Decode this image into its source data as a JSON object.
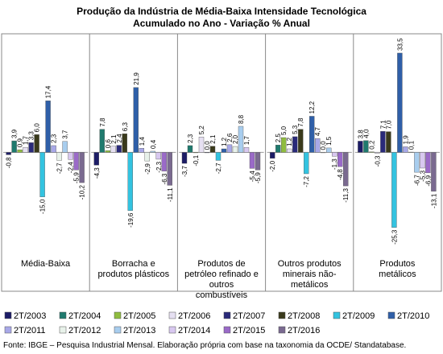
{
  "chart_data": {
    "type": "bar",
    "title": "Produção da Indústria de Média-Baixa Intensidade Tecnológica",
    "subtitle": "Acumulado no Ano - Variação % Anual",
    "categories": [
      "Média-Baixa",
      "Borracha e produtos plásticos",
      "Produtos de petróleo refinado e outros combustíveis",
      "Outros produtos minerais não-metálicos",
      "Produtos metálicos"
    ],
    "ylim": [
      -30,
      40
    ],
    "series": [
      {
        "name": "2T/2003",
        "color": "#1c1c66",
        "values": [
          -0.8,
          -4.3,
          -3.7,
          -2.0,
          3.8
        ],
        "value_labels": [
          "-0,8",
          "-4,3",
          "-3,7",
          "-2,0",
          "3,8"
        ]
      },
      {
        "name": "2T/2004",
        "color": "#1f7a6e",
        "values": [
          3.9,
          7.8,
          2.3,
          2.5,
          4.0
        ],
        "value_labels": [
          "3,9",
          "7,8",
          "2,3",
          "2,5",
          "4,0"
        ]
      },
      {
        "name": "2T/2005",
        "color": "#8fbc3f",
        "values": [
          0.9,
          0.6,
          -0.1,
          5.0,
          0.2
        ],
        "value_labels": [
          "0,9",
          "0,6",
          "-0,1",
          "5,0",
          "0,2"
        ]
      },
      {
        "name": "2T/2006",
        "color": "#e6e0f2",
        "values": [
          1.7,
          2.1,
          5.2,
          1.2,
          -0.3
        ],
        "value_labels": [
          "1,7",
          "2,1",
          "5,2",
          "1,2",
          "-0,3"
        ]
      },
      {
        "name": "2T/2007",
        "color": "#2a2a7a",
        "values": [
          3.3,
          2.4,
          0.0,
          5.3,
          7.1
        ],
        "value_labels": [
          "3,3",
          "2,4",
          "0,0",
          "5,3",
          "7,1"
        ]
      },
      {
        "name": "2T/2008",
        "color": "#3a3a1c",
        "values": [
          6.0,
          6.3,
          2.1,
          7.8,
          7.0
        ],
        "value_labels": [
          "6,0",
          "6,3",
          "2,1",
          "7,8",
          "7,0"
        ]
      },
      {
        "name": "2T/2009",
        "color": "#33c3e0",
        "values": [
          -15.0,
          -19.6,
          -2.7,
          -7.2,
          -25.3
        ],
        "value_labels": [
          "-15,0",
          "-19,6",
          "-2,7",
          "-7,2",
          "-25,3"
        ]
      },
      {
        "name": "2T/2010",
        "color": "#2f5fa8",
        "values": [
          17.4,
          21.9,
          1.2,
          12.2,
          33.5
        ],
        "value_labels": [
          "17,4",
          "21,9",
          "1,2",
          "12,2",
          "33,5"
        ]
      },
      {
        "name": "2T/2011",
        "color": "#a8a8e8",
        "values": [
          2.3,
          1.4,
          2.6,
          4.7,
          1.9
        ],
        "value_labels": [
          "2,3",
          "1,4",
          "2,6",
          "4,7",
          "1,9"
        ]
      },
      {
        "name": "2T/2012",
        "color": "#e8f2ea",
        "values": [
          -2.7,
          -2.9,
          2.0,
          0.0,
          0.1
        ],
        "value_labels": [
          "-2,7",
          "-2,9",
          "2,0",
          "0,0",
          "0,1"
        ]
      },
      {
        "name": "2T/2013",
        "color": "#a8cdee",
        "values": [
          3.7,
          0.4,
          8.8,
          1.5,
          -6.7
        ],
        "value_labels": [
          "3,7",
          "0,4",
          "8,8",
          "1,5",
          "-6,7"
        ]
      },
      {
        "name": "2T/2014",
        "color": "#d8c8f0",
        "values": [
          -2.4,
          -2.3,
          1.7,
          -1.3,
          -5.3
        ],
        "value_labels": [
          "-2,4",
          "-2,3",
          "1,7",
          "-1,3",
          "-5,3"
        ]
      },
      {
        "name": "2T/2015",
        "color": "#9a6ac8",
        "values": [
          -5.9,
          -6.3,
          -5.4,
          -4.8,
          -6.9
        ],
        "value_labels": [
          "-5,9",
          "-6,3",
          "-5,4",
          "-4,8",
          "-6,9"
        ]
      },
      {
        "name": "2T/2016",
        "color": "#7a6a90",
        "values": [
          -10.2,
          -11.1,
          -5.9,
          -11.3,
          -13.1
        ],
        "value_labels": [
          "-10,2",
          "-11,1",
          "-5,9",
          "-11,3",
          "-13,1"
        ]
      }
    ],
    "source": "Fonte: IBGE – Pesquisa Industrial Mensal. Elaboração própria com base na taxonomia da OCDE/ Standatabase."
  }
}
